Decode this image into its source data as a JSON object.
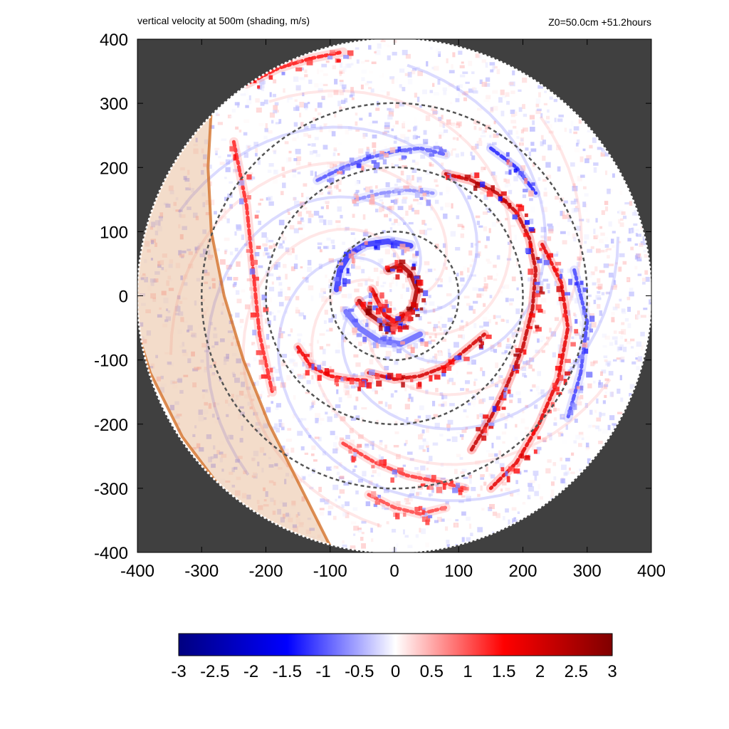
{
  "chart_data": {
    "type": "heatmap",
    "title": "vertical velocity at 500m (shading, m/s)",
    "subtitle": "Z0=50.0cm  +51.2hours",
    "xlabel": "",
    "ylabel": "",
    "xlim": [
      -400,
      400
    ],
    "ylim": [
      -400,
      400
    ],
    "x_ticks": [
      "-400",
      "-300",
      "-200",
      "-100",
      "0",
      "100",
      "200",
      "300",
      "400"
    ],
    "y_ticks": [
      "400",
      "300",
      "200",
      "100",
      "0",
      "-100",
      "-200",
      "-300",
      "-400"
    ],
    "domain_radius": 400,
    "outside_domain_color": "#404040",
    "range_rings": [
      100,
      200,
      300
    ],
    "ring_color": "#555555",
    "colorbar": {
      "min": -3,
      "max": 3,
      "ticks": [
        "-3",
        "-2.5",
        "-2",
        "-1.5",
        "-1",
        "-0.5",
        "0",
        "0.5",
        "1",
        "1.5",
        "2",
        "2.5",
        "3"
      ],
      "colors": [
        "#000080",
        "#0000ff",
        "#ffffff",
        "#ff0000",
        "#800000"
      ]
    },
    "shaded_band": {
      "color": "#d9925a",
      "edge_color": "#d2691e",
      "inner_edge": [
        [
          -285,
          290
        ],
        [
          -290,
          200
        ],
        [
          -285,
          100
        ],
        [
          -265,
          0
        ],
        [
          -235,
          -100
        ],
        [
          -195,
          -200
        ],
        [
          -145,
          -300
        ],
        [
          -95,
          -400
        ]
      ],
      "outer_edge": [
        [
          -400,
          -55
        ],
        [
          -380,
          -120
        ],
        [
          -330,
          -220
        ],
        [
          -255,
          -320
        ],
        [
          -190,
          -380
        ],
        [
          -170,
          -400
        ]
      ]
    },
    "features": [
      {
        "type": "eyewall",
        "points": [
          [
            -10,
            40
          ],
          [
            10,
            48
          ],
          [
            25,
            35
          ],
          [
            35,
            10
          ],
          [
            30,
            -15
          ],
          [
            15,
            -35
          ],
          [
            0,
            -45
          ],
          [
            -20,
            -42
          ],
          [
            -40,
            -28
          ],
          [
            -55,
            -8
          ]
        ],
        "value": 2.5
      },
      {
        "type": "eyewall",
        "points": [
          [
            -35,
            10
          ],
          [
            -25,
            -10
          ],
          [
            -15,
            -30
          ],
          [
            0,
            -40
          ],
          [
            15,
            -30
          ]
        ],
        "value": 1.8
      },
      {
        "type": "inner-band",
        "points": [
          [
            -90,
            10
          ],
          [
            -85,
            40
          ],
          [
            -70,
            65
          ],
          [
            -45,
            80
          ],
          [
            -10,
            85
          ],
          [
            25,
            78
          ]
        ],
        "value": -1.2
      },
      {
        "type": "inner-band",
        "points": [
          [
            40,
            -60
          ],
          [
            10,
            -75
          ],
          [
            -25,
            -70
          ],
          [
            -55,
            -50
          ],
          [
            -75,
            -25
          ]
        ],
        "value": -0.9
      },
      {
        "type": "rainband",
        "points": [
          [
            80,
            190
          ],
          [
            120,
            180
          ],
          [
            160,
            160
          ],
          [
            190,
            130
          ],
          [
            210,
            90
          ],
          [
            220,
            40
          ],
          [
            215,
            -20
          ],
          [
            200,
            -80
          ],
          [
            175,
            -140
          ],
          [
            150,
            -190
          ],
          [
            120,
            -240
          ]
        ],
        "value": 2.2
      },
      {
        "type": "rainband",
        "points": [
          [
            -40,
            -120
          ],
          [
            0,
            -130
          ],
          [
            40,
            -125
          ],
          [
            80,
            -110
          ],
          [
            110,
            -85
          ],
          [
            140,
            -60
          ]
        ],
        "value": 2.0
      },
      {
        "type": "rainband",
        "points": [
          [
            -150,
            -80
          ],
          [
            -130,
            -110
          ],
          [
            -100,
            -125
          ],
          [
            -70,
            -130
          ],
          [
            -40,
            -132
          ]
        ],
        "value": 1.6
      },
      {
        "type": "rainband",
        "points": [
          [
            -120,
            180
          ],
          [
            -80,
            200
          ],
          [
            -40,
            215
          ],
          [
            0,
            225
          ],
          [
            40,
            230
          ],
          [
            80,
            220
          ]
        ],
        "value": -1.0
      },
      {
        "type": "rainband",
        "points": [
          [
            -250,
            240
          ],
          [
            -230,
            140
          ],
          [
            -220,
            40
          ],
          [
            -210,
            -60
          ],
          [
            -190,
            -150
          ]
        ],
        "value": 1.3
      },
      {
        "type": "rainband",
        "points": [
          [
            230,
            80
          ],
          [
            260,
            20
          ],
          [
            270,
            -50
          ],
          [
            255,
            -130
          ],
          [
            225,
            -200
          ],
          [
            190,
            -260
          ],
          [
            150,
            -300
          ]
        ],
        "value": 1.8
      },
      {
        "type": "rainband",
        "points": [
          [
            -80,
            -230
          ],
          [
            -30,
            -260
          ],
          [
            20,
            -280
          ],
          [
            70,
            -290
          ],
          [
            110,
            -300
          ]
        ],
        "value": 1.2
      },
      {
        "type": "rainband",
        "points": [
          [
            -230,
            330
          ],
          [
            -180,
            355
          ],
          [
            -130,
            370
          ],
          [
            -80,
            380
          ]
        ],
        "value": 1.4
      },
      {
        "type": "rainband",
        "points": [
          [
            -40,
            -310
          ],
          [
            0,
            -330
          ],
          [
            40,
            -340
          ],
          [
            80,
            -330
          ]
        ],
        "value": 1.1
      },
      {
        "type": "rainband",
        "points": [
          [
            280,
            40
          ],
          [
            300,
            -40
          ],
          [
            290,
            -120
          ],
          [
            270,
            -190
          ]
        ],
        "value": -1.1
      },
      {
        "type": "rainband",
        "points": [
          [
            -60,
            150
          ],
          [
            -20,
            160
          ],
          [
            20,
            165
          ],
          [
            60,
            160
          ]
        ],
        "value": -0.7
      },
      {
        "type": "rainband",
        "points": [
          [
            150,
            230
          ],
          [
            190,
            200
          ],
          [
            220,
            160
          ]
        ],
        "value": -1.3
      }
    ]
  }
}
